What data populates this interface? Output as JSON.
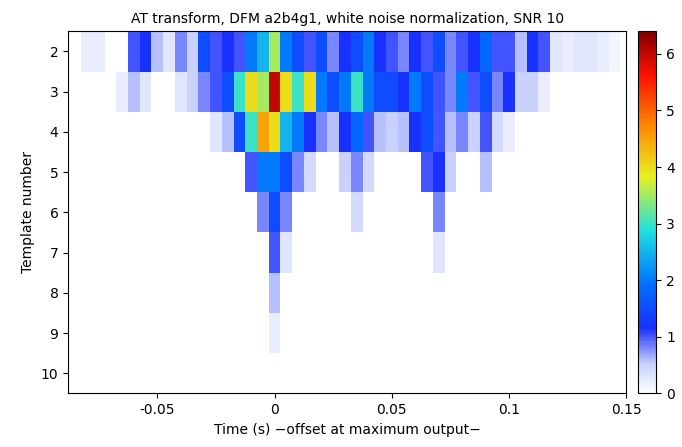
{
  "chart_data": {
    "type": "heatmap",
    "title": "AT transform, DFM a2b4g1, white noise normalization, SNR 10",
    "x_label": "Time (s) −offset at maximum output−",
    "y_label": "Template number",
    "x": [
      -0.085,
      -0.08,
      -0.075,
      -0.07,
      -0.065,
      -0.06,
      -0.055,
      -0.05,
      -0.045,
      -0.04,
      -0.035,
      -0.03,
      -0.025,
      -0.02,
      -0.015,
      -0.01,
      -0.005,
      0,
      0.005,
      0.01,
      0.015,
      0.02,
      0.025,
      0.03,
      0.035,
      0.04,
      0.045,
      0.05,
      0.055,
      0.06,
      0.065,
      0.07,
      0.075,
      0.08,
      0.085,
      0.09,
      0.095,
      0.1,
      0.105,
      0.11,
      0.115,
      0.12,
      0.125,
      0.13,
      0.135,
      0.14,
      0.145,
      0.15
    ],
    "y": [
      2,
      3,
      4,
      5,
      6,
      7,
      8,
      9,
      10
    ],
    "cells": [
      [
        0,
        0.2,
        0.2,
        0,
        0,
        1.0,
        1.2,
        0.6,
        0.3,
        0.8,
        0.5,
        1.5,
        1.0,
        1.2,
        1.0,
        2.0,
        2.5,
        3.5,
        2.0,
        1.5,
        1.0,
        1.5,
        0.8,
        1.2,
        1.5,
        2.0,
        1.2,
        1.0,
        0.8,
        1.2,
        1.0,
        1.5,
        0.8,
        1.0,
        1.2,
        1.8,
        1.0,
        1.0,
        0.6,
        1.2,
        1.0,
        0.3,
        0.2,
        0.3,
        0.3,
        0.2,
        0.1,
        0
      ],
      [
        0,
        0,
        0,
        0,
        0.2,
        0.6,
        0.3,
        0,
        0,
        0.3,
        0.5,
        0.8,
        1.0,
        1.5,
        3.0,
        4.0,
        3.5,
        6.0,
        4.0,
        3.0,
        4.0,
        2.0,
        1.5,
        2.0,
        3.0,
        2.0,
        1.5,
        1.5,
        1.2,
        2.0,
        1.5,
        1.0,
        0.8,
        2.0,
        1.0,
        1.5,
        0.8,
        1.2,
        0.5,
        0.5,
        0.2,
        0,
        0,
        0,
        0,
        0,
        0,
        0
      ],
      [
        0,
        0,
        0,
        0,
        0,
        0,
        0,
        0,
        0,
        0,
        0,
        0,
        0.3,
        0.6,
        1.5,
        3.0,
        4.5,
        4.0,
        2.5,
        2.0,
        1.2,
        0.8,
        0.6,
        1.2,
        1.8,
        1.0,
        0.6,
        0.5,
        0.6,
        1.2,
        1.5,
        1.0,
        0.6,
        0.8,
        0.5,
        1.0,
        0.4,
        0.2,
        0,
        0,
        0,
        0,
        0,
        0,
        0,
        0,
        0,
        0
      ],
      [
        0,
        0,
        0,
        0,
        0,
        0,
        0,
        0,
        0,
        0,
        0,
        0,
        0,
        0,
        0,
        1.0,
        2.0,
        2.0,
        1.5,
        0.8,
        0.4,
        0,
        0,
        0.5,
        0.8,
        0.4,
        0,
        0,
        0,
        0,
        1.0,
        1.2,
        0.5,
        0,
        0,
        0.6,
        0,
        0,
        0,
        0,
        0,
        0,
        0,
        0,
        0,
        0,
        0,
        0
      ],
      [
        0,
        0,
        0,
        0,
        0,
        0,
        0,
        0,
        0,
        0,
        0,
        0,
        0,
        0,
        0,
        0,
        0.8,
        1.5,
        0.8,
        0,
        0,
        0,
        0,
        0,
        0.4,
        0,
        0,
        0,
        0,
        0,
        0,
        0.8,
        0,
        0,
        0,
        0,
        0,
        0,
        0,
        0,
        0,
        0,
        0,
        0,
        0,
        0,
        0,
        0
      ],
      [
        0,
        0,
        0,
        0,
        0,
        0,
        0,
        0,
        0,
        0,
        0,
        0,
        0,
        0,
        0,
        0,
        0,
        1.0,
        0.3,
        0,
        0,
        0,
        0,
        0,
        0,
        0,
        0,
        0,
        0,
        0,
        0,
        0.3,
        0,
        0,
        0,
        0,
        0,
        0,
        0,
        0,
        0,
        0,
        0,
        0,
        0,
        0,
        0,
        0
      ],
      [
        0,
        0,
        0,
        0,
        0,
        0,
        0,
        0,
        0,
        0,
        0,
        0,
        0,
        0,
        0,
        0,
        0,
        0.6,
        0,
        0,
        0,
        0,
        0,
        0,
        0,
        0,
        0,
        0,
        0,
        0,
        0,
        0,
        0,
        0,
        0,
        0,
        0,
        0,
        0,
        0,
        0,
        0,
        0,
        0,
        0,
        0,
        0,
        0
      ],
      [
        0,
        0,
        0,
        0,
        0,
        0,
        0,
        0,
        0,
        0,
        0,
        0,
        0,
        0,
        0,
        0,
        0,
        0.2,
        0,
        0,
        0,
        0,
        0,
        0,
        0,
        0,
        0,
        0,
        0,
        0,
        0,
        0,
        0,
        0,
        0,
        0,
        0,
        0,
        0,
        0,
        0,
        0,
        0,
        0,
        0,
        0,
        0,
        0
      ],
      [
        0,
        0,
        0,
        0,
        0,
        0,
        0,
        0,
        0,
        0,
        0,
        0,
        0,
        0,
        0,
        0,
        0,
        0,
        0,
        0,
        0,
        0,
        0,
        0,
        0,
        0,
        0,
        0,
        0,
        0,
        0,
        0,
        0,
        0,
        0,
        0,
        0,
        0,
        0,
        0,
        0,
        0,
        0,
        0,
        0,
        0,
        0,
        0
      ]
    ],
    "xlim": [
      -0.088,
      0.15
    ],
    "xticks": [
      -0.05,
      0,
      0.05,
      0.1,
      0.15
    ],
    "ylim": [
      10.5,
      1.5
    ],
    "yticks": [
      2,
      3,
      4,
      5,
      6,
      7,
      8,
      9,
      10
    ],
    "colorbar_range": [
      0,
      6.4
    ],
    "colorbar_ticks": [
      0,
      1,
      2,
      3,
      4,
      5,
      6
    ]
  }
}
